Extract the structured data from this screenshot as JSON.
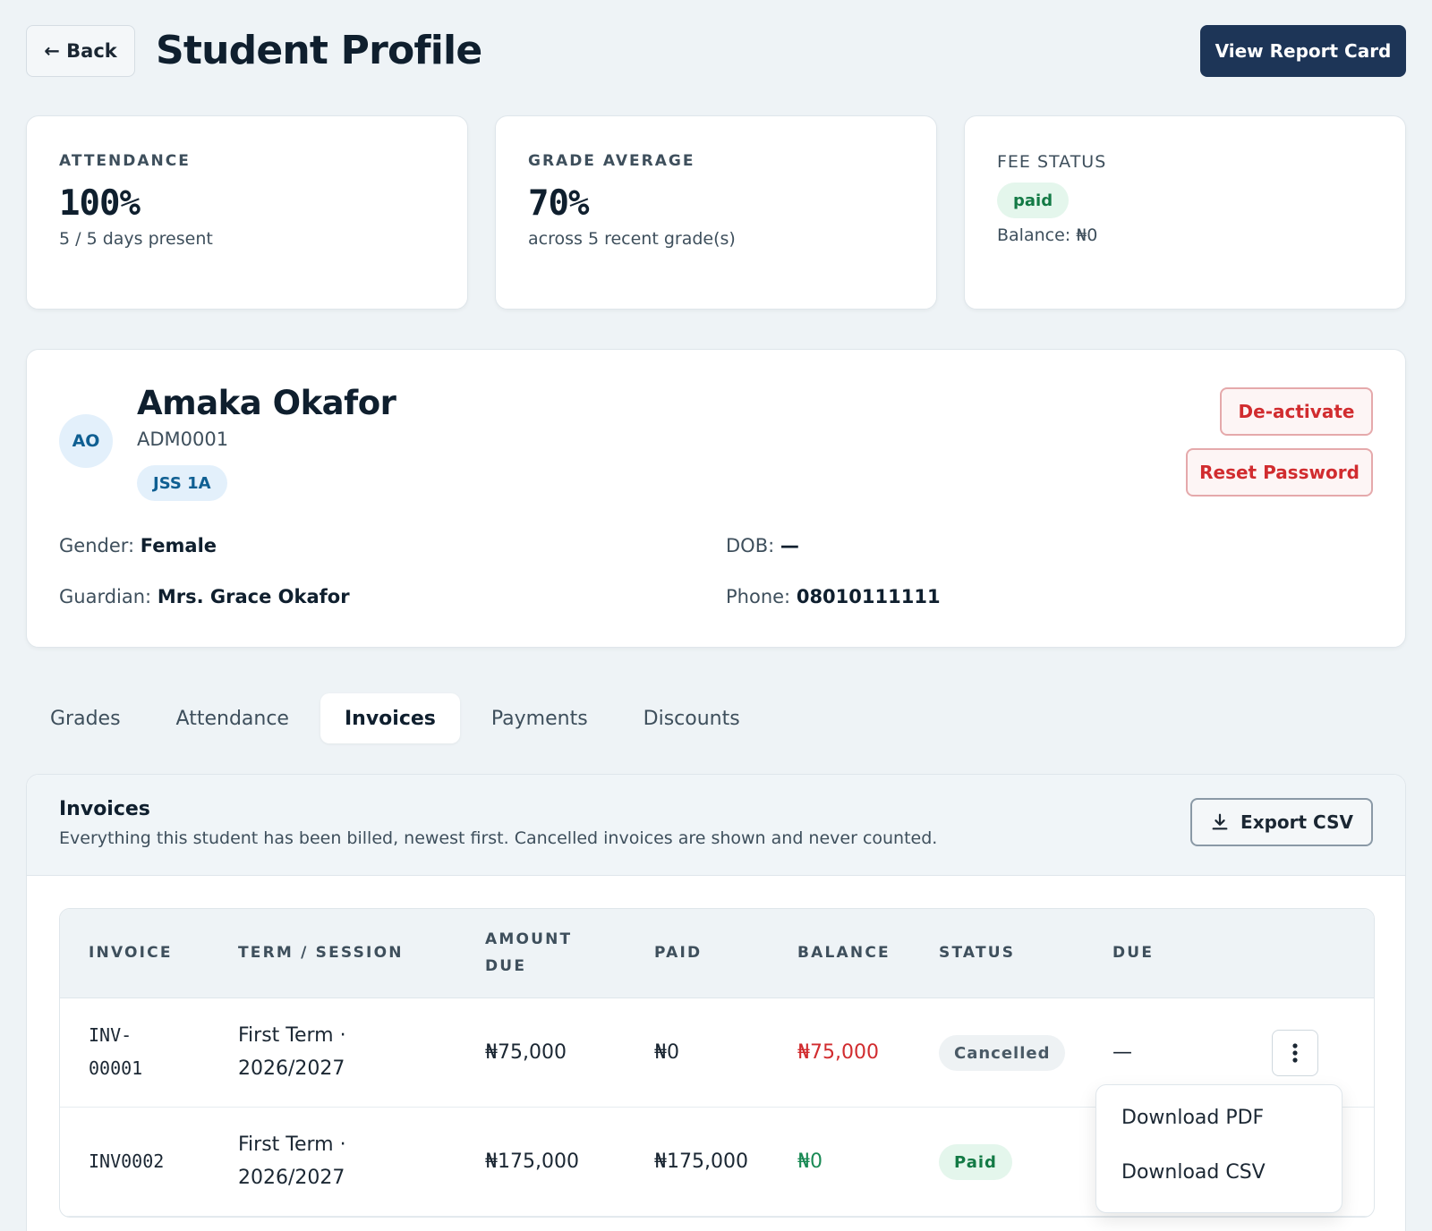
{
  "header": {
    "back_label": "← Back",
    "title": "Student Profile",
    "report_card_label": "View Report Card"
  },
  "stats": {
    "attendance": {
      "label": "ATTENDANCE",
      "value": "100%",
      "sub": "5 / 5 days present"
    },
    "grade_average": {
      "label": "GRADE AVERAGE",
      "value": "70%",
      "sub": "across 5 recent grade(s)"
    },
    "fee_status": {
      "label": "FEE STATUS",
      "status": "paid",
      "balance": "Balance: ₦0"
    }
  },
  "student": {
    "initials": "AO",
    "name": "Amaka Okafor",
    "admission_no": "ADM0001",
    "class": "JSS 1A",
    "deactivate_label": "De-activate",
    "reset_password_label": "Reset Password",
    "gender_label": "Gender:",
    "gender": "Female",
    "dob_label": "DOB:",
    "dob": "—",
    "guardian_label": "Guardian:",
    "guardian": "Mrs. Grace Okafor",
    "phone_label": "Phone:",
    "phone": "08010111111"
  },
  "tabs": [
    "Grades",
    "Attendance",
    "Invoices",
    "Payments",
    "Discounts"
  ],
  "active_tab": "Invoices",
  "invoices": {
    "title": "Invoices",
    "subtitle": "Everything this student has been billed, newest first. Cancelled invoices are shown and never counted.",
    "export_label": "Export CSV",
    "columns": {
      "invoice": "INVOICE",
      "term": "TERM / SESSION",
      "amount_due_1": "AMOUNT",
      "amount_due_2": "DUE",
      "paid": "PAID",
      "balance": "BALANCE",
      "status": "STATUS",
      "due": "DUE"
    },
    "rows": [
      {
        "invoice_1": "INV-",
        "invoice_2": "00001",
        "term_1": "First Term ·",
        "term_2": "2026/2027",
        "amount_due": "₦75,000",
        "paid": "₦0",
        "balance": "₦75,000",
        "status": "Cancelled",
        "due": "—"
      },
      {
        "invoice": "INV0002",
        "term_1": "First Term ·",
        "term_2": "2026/2027",
        "amount_due": "₦175,000",
        "paid": "₦175,000",
        "balance": "₦0",
        "status": "Paid"
      }
    ]
  },
  "row_menu": {
    "download_pdf": "Download PDF",
    "download_csv": "Download CSV"
  },
  "colors": {
    "primary": "#1d3557",
    "danger": "#d12c2f",
    "success": "#137a45",
    "background": "#eef3f6"
  }
}
